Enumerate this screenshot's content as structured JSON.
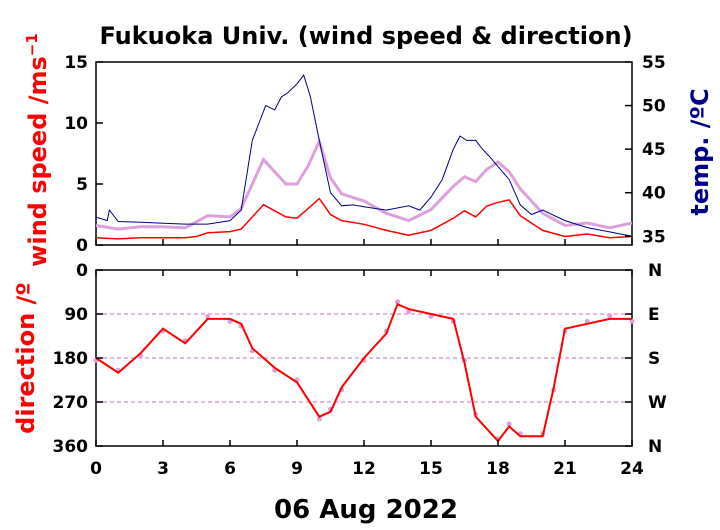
{
  "chart_data": [
    {
      "type": "line",
      "title": "Fukuoka Univ. (wind speed & direction)",
      "xlabel": "06 Aug 2022",
      "ylabel": "wind speed /ms",
      "ylabel_exponent": "−1",
      "y2label": "temp. /ºC",
      "xlim": [
        0,
        24
      ],
      "ylim": [
        0,
        15
      ],
      "y2lim": [
        34,
        55
      ],
      "x_ticks": [
        0,
        3,
        6,
        9,
        12,
        15,
        18,
        21,
        24
      ],
      "y_ticks": [
        0,
        5,
        10,
        15
      ],
      "y2_ticks": [
        35,
        40,
        45,
        50,
        55
      ],
      "colors": {
        "wind_mean": "#ff0000",
        "wind_gust": "#dda0dd",
        "temperature": "#00008b"
      },
      "series": [
        {
          "key": "wind_mean",
          "axis": "y",
          "x": [
            0,
            1,
            2,
            3,
            4,
            4.5,
            5,
            6,
            6.5,
            7,
            7.5,
            8,
            8.5,
            9,
            9.5,
            10,
            10.5,
            11,
            12,
            13,
            14,
            15,
            16,
            16.5,
            17,
            17.5,
            18,
            18.5,
            19,
            20,
            21,
            22,
            23,
            24
          ],
          "y": [
            0.6,
            0.5,
            0.6,
            0.6,
            0.6,
            0.7,
            1.0,
            1.1,
            1.3,
            2.3,
            3.3,
            2.8,
            2.3,
            2.2,
            3.0,
            3.8,
            2.5,
            2.0,
            1.7,
            1.2,
            0.8,
            1.2,
            2.2,
            2.8,
            2.3,
            3.2,
            3.5,
            3.7,
            2.4,
            1.2,
            0.7,
            0.9,
            0.6,
            0.7
          ]
        },
        {
          "key": "wind_gust",
          "axis": "y",
          "x": [
            0,
            1,
            2,
            3,
            4,
            4.5,
            5,
            6,
            6.5,
            7,
            7.5,
            8,
            8.5,
            9,
            9.5,
            10,
            10.5,
            11,
            12,
            13,
            14,
            15,
            16,
            16.5,
            17,
            17.5,
            18,
            18.5,
            19,
            20,
            21,
            22,
            23,
            24
          ],
          "y": [
            1.6,
            1.3,
            1.5,
            1.5,
            1.4,
            1.9,
            2.4,
            2.3,
            3.0,
            5.0,
            7.0,
            6.0,
            5.0,
            5.0,
            6.5,
            8.5,
            5.5,
            4.2,
            3.6,
            2.6,
            2.0,
            2.9,
            4.8,
            5.6,
            5.2,
            6.2,
            6.8,
            6.0,
            4.6,
            2.6,
            1.6,
            1.8,
            1.4,
            1.8
          ]
        },
        {
          "key": "temperature",
          "axis": "y2",
          "x": [
            0,
            0.5,
            0.6,
            1,
            2,
            3,
            4,
            5,
            6,
            6.5,
            7,
            7.3,
            7.6,
            8,
            8.3,
            8.6,
            9,
            9.3,
            9.6,
            10,
            10.5,
            11,
            11.5,
            12,
            13,
            14,
            14.5,
            15,
            15.5,
            16,
            16.3,
            16.6,
            17,
            17.3,
            17.6,
            18,
            18.5,
            19,
            19.5,
            20,
            21,
            22,
            23,
            24
          ],
          "y": [
            37.2,
            36.8,
            38.0,
            36.7,
            36.6,
            36.5,
            36.4,
            36.4,
            36.8,
            38.0,
            46.0,
            48.0,
            50.0,
            49.5,
            51.0,
            51.5,
            52.5,
            53.5,
            51.0,
            46.0,
            40.0,
            38.5,
            38.6,
            38.4,
            38.0,
            38.5,
            38.0,
            39.5,
            41.5,
            45.0,
            46.5,
            46.0,
            46.0,
            45.0,
            44.2,
            43.0,
            41.5,
            38.6,
            37.5,
            38.0,
            36.8,
            36.0,
            35.5,
            35.0
          ]
        }
      ]
    },
    {
      "type": "scatter",
      "xlabel": "06 Aug 2022",
      "ylabel": "direction /º",
      "xlim": [
        0,
        24
      ],
      "ylim": [
        360,
        0
      ],
      "x_ticks": [
        0,
        3,
        6,
        9,
        12,
        15,
        18,
        21,
        24
      ],
      "y_ticks": [
        0,
        90,
        180,
        270,
        360
      ],
      "y2_ticks": [
        "N",
        "E",
        "S",
        "W",
        "N"
      ],
      "grid": true,
      "colors": {
        "mean_direction": "#ff0000",
        "instant_direction": "#dda0dd",
        "grid": "#dda0dd"
      },
      "series": [
        {
          "key": "mean_direction",
          "x": [
            0,
            1,
            2,
            3,
            4,
            5,
            6,
            6.5,
            7,
            8,
            9,
            10,
            10.5,
            11,
            12,
            13,
            13.5,
            14,
            15,
            16,
            16.5,
            17,
            18,
            18.5,
            19,
            20,
            20.5,
            21,
            22,
            23,
            24
          ],
          "y": [
            180,
            210,
            170,
            120,
            150,
            100,
            100,
            110,
            160,
            200,
            230,
            300,
            290,
            240,
            180,
            130,
            70,
            80,
            90,
            100,
            190,
            300,
            350,
            320,
            340,
            340,
            240,
            120,
            110,
            100,
            100
          ]
        },
        {
          "key": "instant_direction",
          "x": [
            0,
            1,
            2,
            3,
            4,
            5,
            6,
            6.5,
            7,
            8,
            9,
            10,
            10.5,
            11,
            12,
            13,
            13.5,
            14,
            15,
            16,
            16.5,
            17,
            18,
            18.5,
            19,
            20,
            20.5,
            21,
            22,
            23,
            24
          ],
          "y": [
            185,
            205,
            175,
            125,
            145,
            95,
            105,
            115,
            165,
            205,
            225,
            305,
            285,
            245,
            185,
            125,
            65,
            85,
            95,
            105,
            185,
            295,
            345,
            315,
            335,
            335,
            245,
            125,
            105,
            95,
            105
          ]
        }
      ]
    }
  ]
}
